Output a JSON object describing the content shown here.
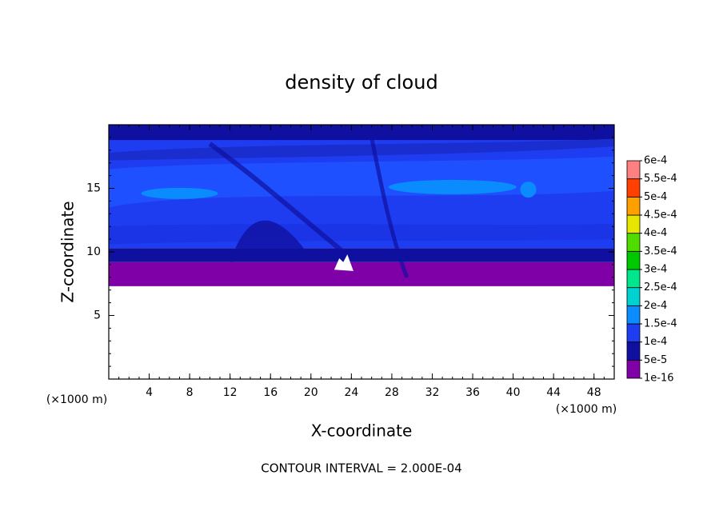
{
  "chart_data": {
    "type": "contour",
    "title": "density of cloud",
    "xlabel": "X-coordinate",
    "ylabel": "Z-coordinate",
    "x_unit_label": "(×1000 m)",
    "y_unit_label": "(×1000 m)",
    "footer": "CONTOUR INTERVAL = 2.000E-04",
    "xlim": [
      0,
      50
    ],
    "xticks": [
      4,
      8,
      12,
      16,
      20,
      24,
      28,
      32,
      36,
      40,
      44,
      48
    ],
    "ylim": [
      0,
      20
    ],
    "yticks": [
      5,
      10,
      15
    ],
    "colorbar": {
      "levels": [
        {
          "value": 1e-16,
          "label": "1e-16"
        },
        {
          "value": 5e-05,
          "label": "5e-5"
        },
        {
          "value": 0.0001,
          "label": "1e-4"
        },
        {
          "value": 0.00015,
          "label": "1.5e-4"
        },
        {
          "value": 0.0002,
          "label": "2e-4"
        },
        {
          "value": 0.00025,
          "label": "2.5e-4"
        },
        {
          "value": 0.0003,
          "label": "3e-4"
        },
        {
          "value": 0.00035,
          "label": "3.5e-4"
        },
        {
          "value": 0.0004,
          "label": "4e-4"
        },
        {
          "value": 0.00045,
          "label": "4.5e-4"
        },
        {
          "value": 0.0005,
          "label": "5e-4"
        },
        {
          "value": 0.00055,
          "label": "5.5e-4"
        },
        {
          "value": 0.0006,
          "label": "6e-4"
        }
      ],
      "colors": [
        "#8000a8",
        "#1010a0",
        "#1e3cf0",
        "#0a8cff",
        "#00d2d2",
        "#00e68c",
        "#00c800",
        "#50dc00",
        "#e6e600",
        "#ffa000",
        "#ff4000",
        "#ff8080"
      ]
    }
  }
}
